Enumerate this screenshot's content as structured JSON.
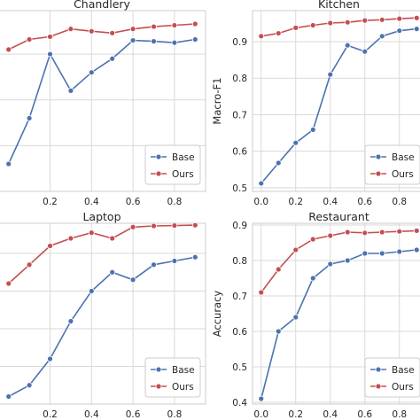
{
  "colors": {
    "base": "#4c72b0",
    "ours": "#c44e52",
    "plot_bg": "#ffffff",
    "grid": "#d9d9d9",
    "axes": "#cccccc"
  },
  "chart_data": [
    {
      "id": "chandlery",
      "type": "line",
      "title": "Chandlery",
      "xlabel": "",
      "ylabel": "",
      "x": [
        0.0,
        0.1,
        0.2,
        0.3,
        0.4,
        0.5,
        0.6,
        0.7,
        0.8,
        0.9
      ],
      "xlim": [
        -0.05,
        0.95
      ],
      "ylim": [
        0.6,
        0.995
      ],
      "xticks": [
        0.2,
        0.4,
        0.6,
        0.8
      ],
      "xtick_labels": [
        "0.2",
        "0.4",
        "0.6",
        "0.8"
      ],
      "yticks": [],
      "ytick_labels": [],
      "grid": true,
      "legend": "bottom-right",
      "series": [
        {
          "name": "Base",
          "color_key": "base",
          "values": [
            0.66,
            0.76,
            0.9,
            0.82,
            0.86,
            0.89,
            0.93,
            0.928,
            0.925,
            0.932
          ]
        },
        {
          "name": "Ours",
          "color_key": "ours",
          "values": [
            0.91,
            0.932,
            0.938,
            0.955,
            0.95,
            0.946,
            0.955,
            0.96,
            0.963,
            0.966
          ]
        }
      ]
    },
    {
      "id": "kitchen",
      "type": "line",
      "title": "Kitchen",
      "xlabel": "",
      "ylabel": "Macro-F1",
      "x": [
        0.0,
        0.1,
        0.2,
        0.3,
        0.4,
        0.5,
        0.6,
        0.7,
        0.8,
        0.9
      ],
      "xlim": [
        -0.05,
        0.95
      ],
      "ylim": [
        0.49,
        0.985
      ],
      "xticks": [
        0.0,
        0.2,
        0.4,
        0.6,
        0.8
      ],
      "xtick_labels": [
        "0.0",
        "0.2",
        "0.4",
        "0.6",
        "0.8"
      ],
      "yticks": [
        0.5,
        0.6,
        0.7,
        0.8,
        0.9
      ],
      "ytick_labels": [
        "0.5",
        "0.6",
        "0.7",
        "0.8",
        "0.9"
      ],
      "grid": true,
      "legend": "bottom-right",
      "series": [
        {
          "name": "Base",
          "color_key": "base",
          "values": [
            0.512,
            0.568,
            0.623,
            0.659,
            0.81,
            0.89,
            0.873,
            0.915,
            0.93,
            0.935
          ]
        },
        {
          "name": "Ours",
          "color_key": "ours",
          "values": [
            0.915,
            0.923,
            0.938,
            0.945,
            0.951,
            0.953,
            0.958,
            0.96,
            0.963,
            0.965
          ]
        }
      ]
    },
    {
      "id": "laptop",
      "type": "line",
      "title": "Laptop",
      "xlabel": "",
      "ylabel": "",
      "x": [
        0.0,
        0.1,
        0.2,
        0.3,
        0.4,
        0.5,
        0.6,
        0.7,
        0.8,
        0.9
      ],
      "xlim": [
        -0.05,
        0.95
      ],
      "ylim": [
        0.5,
        0.98
      ],
      "xticks": [
        0.2,
        0.4,
        0.6,
        0.8
      ],
      "xtick_labels": [
        "0.2",
        "0.4",
        "0.6",
        "0.8"
      ],
      "yticks": [],
      "ytick_labels": [],
      "grid": true,
      "legend": "bottom-right",
      "series": [
        {
          "name": "Base",
          "color_key": "base",
          "values": [
            0.52,
            0.55,
            0.62,
            0.72,
            0.8,
            0.85,
            0.83,
            0.87,
            0.88,
            0.89
          ]
        },
        {
          "name": "Ours",
          "color_key": "ours",
          "values": [
            0.82,
            0.87,
            0.92,
            0.94,
            0.955,
            0.94,
            0.97,
            0.973,
            0.974,
            0.975
          ]
        }
      ]
    },
    {
      "id": "restaurant",
      "type": "line",
      "title": "Restaurant",
      "xlabel": "",
      "ylabel": "Accuracy",
      "x": [
        0.0,
        0.1,
        0.2,
        0.3,
        0.4,
        0.5,
        0.6,
        0.7,
        0.8,
        0.9
      ],
      "xlim": [
        -0.05,
        0.95
      ],
      "ylim": [
        0.395,
        0.905
      ],
      "xticks": [
        0.0,
        0.2,
        0.4,
        0.6,
        0.8
      ],
      "xtick_labels": [
        "0.0",
        "0.2",
        "0.4",
        "0.6",
        "0.8"
      ],
      "yticks": [
        0.4,
        0.5,
        0.6,
        0.7,
        0.8,
        0.9
      ],
      "ytick_labels": [
        "0.4",
        "0.5",
        "0.6",
        "0.7",
        "0.8",
        "0.9"
      ],
      "grid": true,
      "legend": "bottom-right",
      "series": [
        {
          "name": "Base",
          "color_key": "base",
          "values": [
            0.41,
            0.6,
            0.64,
            0.75,
            0.79,
            0.8,
            0.82,
            0.82,
            0.825,
            0.83
          ]
        },
        {
          "name": "Ours",
          "color_key": "ours",
          "values": [
            0.71,
            0.775,
            0.83,
            0.86,
            0.87,
            0.88,
            0.878,
            0.88,
            0.882,
            0.884
          ]
        }
      ]
    }
  ]
}
